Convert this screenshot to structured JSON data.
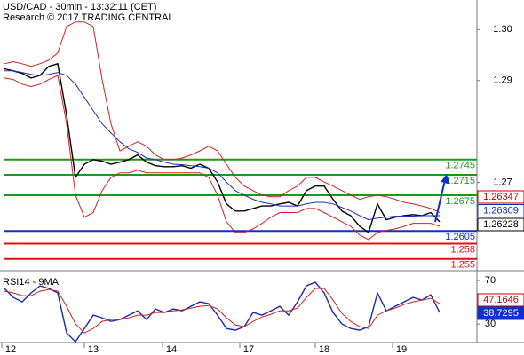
{
  "chart_data": {
    "type": "line",
    "title": "USD/CAD - 30min - 13:32:11 (CET)",
    "subtitle": "Research © 2017 TRADING CENTRAL",
    "xlim": [
      -0.5,
      53.2
    ],
    "xticks": [
      {
        "value": -0.3,
        "label": "12"
      },
      {
        "value": 9,
        "label": "13"
      },
      {
        "value": 17.8,
        "label": "14"
      },
      {
        "value": 26.5,
        "label": "17"
      },
      {
        "value": 35,
        "label": "18"
      },
      {
        "value": 43.7,
        "label": "19"
      }
    ],
    "ylim": [
      1.2527,
      1.3058
    ],
    "yticks": [
      {
        "value": 1.3,
        "label": "1.30"
      },
      1.29,
      1.27
    ],
    "series": [
      {
        "color": "#000000",
        "values": [
          1.2923,
          1.2919,
          1.2914,
          1.2905,
          1.291,
          1.2928,
          1.2933,
          1.2832,
          1.271,
          1.2736,
          1.2745,
          1.2742,
          1.2736,
          1.274,
          1.2745,
          1.2754,
          1.274,
          1.2733,
          1.2731,
          1.2731,
          1.2733,
          1.2728,
          1.2736,
          1.2728,
          1.2701,
          1.2658,
          1.2644,
          1.2644,
          1.2649,
          1.2654,
          1.2654,
          1.2658,
          1.2661,
          1.2654,
          1.2684,
          1.2693,
          1.2693,
          1.2667,
          1.2644,
          1.2635,
          1.2614,
          1.2602,
          1.2658,
          1.2627,
          1.2632,
          1.2635,
          1.2637,
          1.2635,
          1.2641,
          1.2623
        ]
      },
      {
        "color": "#d42020",
        "values": [
          1.2933,
          1.2937,
          1.2933,
          1.2928,
          1.2933,
          1.294,
          1.2954,
          1.3006,
          1.3015,
          1.3015,
          1.3006,
          1.2902,
          1.2815,
          1.2762,
          1.2771,
          1.278,
          1.2771,
          1.2754,
          1.2745,
          1.2745,
          1.2748,
          1.2754,
          1.2762,
          1.2771,
          1.2762,
          1.2736,
          1.271,
          1.2693,
          1.2684,
          1.2675,
          1.2672,
          1.2672,
          1.2684,
          1.2693,
          1.271,
          1.271,
          1.2701,
          1.2693,
          1.2684,
          1.2675,
          1.2667,
          1.2672,
          1.2675,
          1.2672,
          1.2667,
          1.2661,
          1.2658,
          1.2654,
          1.2649,
          1.2641
        ]
      },
      {
        "color": "#d42020",
        "values": [
          1.2905,
          1.2902,
          1.2893,
          1.2888,
          1.2893,
          1.2902,
          1.291,
          1.2815,
          1.2675,
          1.2632,
          1.2641,
          1.2684,
          1.271,
          1.2719,
          1.2719,
          1.2724,
          1.2719,
          1.2719,
          1.2719,
          1.2719,
          1.2719,
          1.2719,
          1.2719,
          1.271,
          1.2675,
          1.2623,
          1.2602,
          1.2602,
          1.2609,
          1.262,
          1.2632,
          1.2641,
          1.2641,
          1.2641,
          1.2649,
          1.2649,
          1.2641,
          1.2632,
          1.2623,
          1.2614,
          1.2597,
          1.2588,
          1.2602,
          1.2606,
          1.2609,
          1.2614,
          1.262,
          1.262,
          1.262,
          1.2614
        ]
      },
      {
        "color": "#2030c0",
        "values": [
          1.2919,
          1.2919,
          1.2916,
          1.2912,
          1.291,
          1.2912,
          1.2916,
          1.291,
          1.2893,
          1.2867,
          1.2841,
          1.2815,
          1.2797,
          1.278,
          1.2766,
          1.2759,
          1.2748,
          1.2745,
          1.274,
          1.2736,
          1.2735,
          1.2733,
          1.2731,
          1.2728,
          1.2719,
          1.2701,
          1.2684,
          1.2675,
          1.2667,
          1.2661,
          1.2658,
          1.2654,
          1.2654,
          1.2654,
          1.2658,
          1.2661,
          1.2661,
          1.2658,
          1.2651,
          1.2644,
          1.2635,
          1.2627,
          1.263,
          1.2632,
          1.2634,
          1.2634,
          1.2634,
          1.2635,
          1.2635,
          1.2635
        ]
      }
    ],
    "levels": [
      {
        "value": 1.2745,
        "color": "#1a9a1a"
      },
      {
        "value": 1.2715,
        "color": "#1a9a1a"
      },
      {
        "value": 1.2675,
        "color": "#1a9a1a"
      },
      {
        "value": 1.2605,
        "color": "#1030c8"
      },
      {
        "value": 1.258,
        "color": "#e01010"
      },
      {
        "value": 1.255,
        "color": "#e01010"
      }
    ],
    "last_values": [
      {
        "value": 1.26347,
        "color": "#c00000"
      },
      {
        "value": 1.26309,
        "color": "#1030c8"
      },
      {
        "value": 1.26228,
        "color": "#000000"
      }
    ],
    "rsi": {
      "label": "RSI14 - 9MA",
      "ylim": [
        13,
        73.3
      ],
      "yticks": [
        70,
        30
      ],
      "series": [
        {
          "color": "#1a2ab0",
          "values": [
            62.7,
            54.5,
            50.4,
            58.6,
            65.1,
            62.7,
            58.6,
            21.8,
            13.7,
            25.9,
            38.2,
            35.7,
            32.4,
            34.1,
            38.2,
            42.2,
            34.1,
            43.9,
            40.6,
            43.9,
            42.2,
            46.3,
            50.4,
            48.8,
            38.2,
            25.9,
            24.3,
            27.6,
            40.6,
            38.2,
            42.2,
            46.3,
            38.2,
            50.4,
            65.1,
            68.4,
            58.6,
            40.6,
            30.0,
            25.9,
            24.3,
            27.6,
            58.6,
            42.2,
            46.3,
            50.4,
            54.5,
            52.0,
            56.9,
            40.6
          ]
        },
        {
          "color": "#d42020",
          "values": [
            60.2,
            58.6,
            56.1,
            56.1,
            60.2,
            61.8,
            60.2,
            46.3,
            30.0,
            21.8,
            25.9,
            32.4,
            34.1,
            34.1,
            35.7,
            38.2,
            38.2,
            40.6,
            40.6,
            42.2,
            43.1,
            44.7,
            46.3,
            47.1,
            43.9,
            35.7,
            29.2,
            27.6,
            32.4,
            36.5,
            39.0,
            42.2,
            42.2,
            44.7,
            54.5,
            62.7,
            62.7,
            52.0,
            39.8,
            32.4,
            27.6,
            25.9,
            38.2,
            42.2,
            44.7,
            48.0,
            50.4,
            52.0,
            53.7,
            48.8
          ]
        }
      ],
      "last_values": [
        {
          "value": 47.1646,
          "color": "#c00000"
        },
        {
          "value": 38.7295,
          "color": "#1030c8"
        }
      ]
    }
  }
}
